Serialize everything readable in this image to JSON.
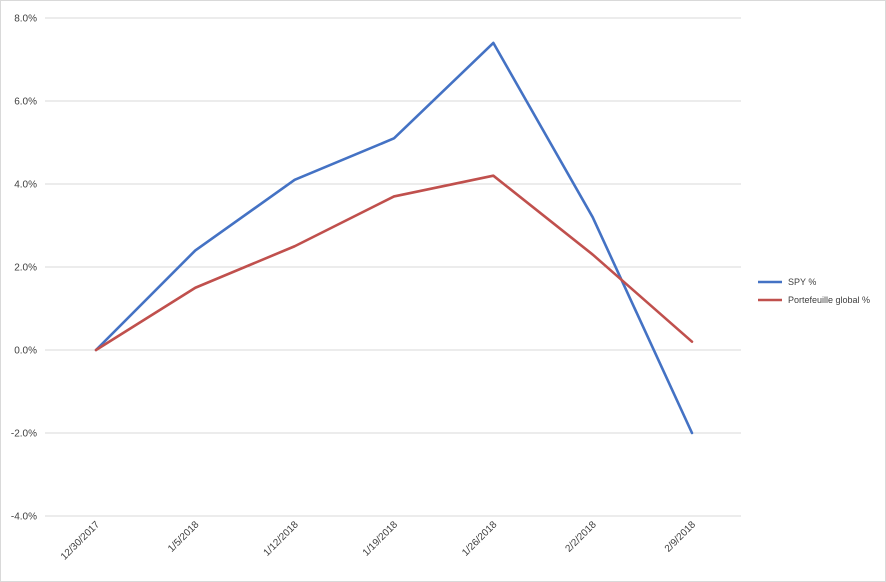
{
  "chart_data": {
    "type": "line",
    "title": "",
    "xlabel": "",
    "ylabel": "",
    "categories": [
      "12/30/2017",
      "1/5/2018",
      "1/12/2018",
      "1/19/2018",
      "1/26/2018",
      "2/2/2018",
      "2/9/2018"
    ],
    "series": [
      {
        "name": "SPY %",
        "color": "#4472c4",
        "values": [
          0.0,
          2.4,
          4.1,
          5.1,
          7.4,
          3.2,
          -2.0
        ]
      },
      {
        "name": "Portefeuille global %",
        "color": "#c0504d",
        "values": [
          0.0,
          1.5,
          2.5,
          3.7,
          4.2,
          2.3,
          0.2
        ]
      }
    ],
    "ylim": [
      -4.0,
      8.0
    ],
    "yticks": [
      -4.0,
      -2.0,
      0.0,
      2.0,
      4.0,
      6.0,
      8.0
    ],
    "ytick_labels": [
      "-4.0%",
      "-2.0%",
      "0.0%",
      "2.0%",
      "4.0%",
      "6.0%",
      "8.0%"
    ],
    "grid": true,
    "legend_position": "right"
  }
}
